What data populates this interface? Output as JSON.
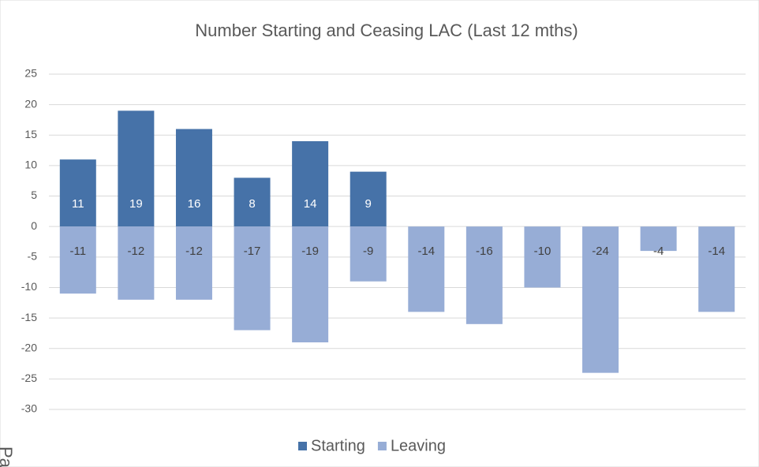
{
  "chart_data": {
    "type": "bar",
    "title": "Number Starting and Ceasing LAC (Last 12 mths)",
    "categories": [
      null,
      null,
      null,
      null,
      null,
      null,
      null,
      null,
      null,
      null,
      null,
      null
    ],
    "series": [
      {
        "name": "Starting",
        "color": "#4672a8",
        "values": [
          11,
          19,
          16,
          8,
          14,
          9,
          null,
          null,
          null,
          null,
          null,
          null
        ]
      },
      {
        "name": "Leaving",
        "color": "#97add6",
        "values": [
          -11,
          -12,
          -12,
          -17,
          -19,
          -9,
          -14,
          -16,
          -10,
          -24,
          -4,
          -14
        ]
      }
    ],
    "ylim": [
      -30,
      25
    ],
    "yticks": [
      -30,
      -25,
      -20,
      -15,
      -10,
      -5,
      0,
      5,
      10,
      15,
      20,
      25
    ],
    "grid": true,
    "legend": "bottom",
    "side_text": "Pa"
  }
}
